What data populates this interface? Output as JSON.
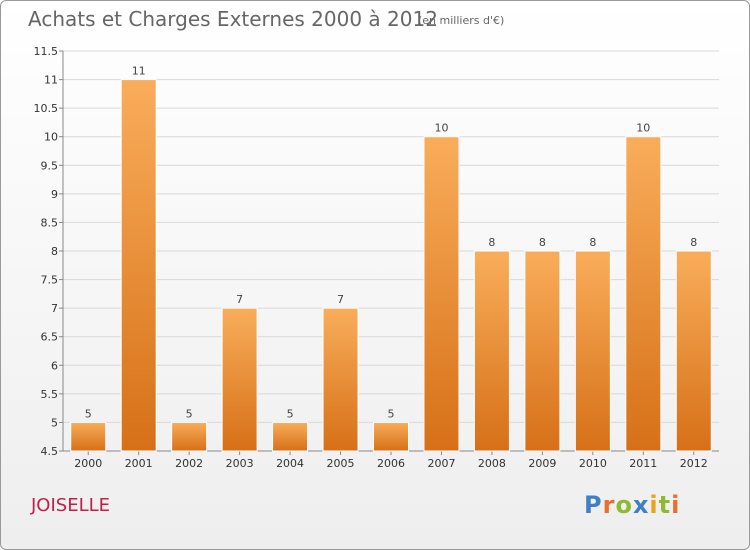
{
  "header": {
    "title": "Achats et Charges Externes 2000 à 2012",
    "subtitle": "(en milliers d'€)"
  },
  "commune": "JOISELLE",
  "logo": {
    "text": "Proxiti"
  },
  "colors": {
    "bar_light": "#f7a64e",
    "bar_dark": "#d9731e",
    "title": "#666666",
    "commune": "#c21d4c"
  },
  "chart_data": {
    "type": "bar",
    "title": "Achats et Charges Externes 2000 à 2012",
    "subtitle": "(en milliers d'€)",
    "categories": [
      "2000",
      "2001",
      "2002",
      "2003",
      "2004",
      "2005",
      "2006",
      "2007",
      "2008",
      "2009",
      "2010",
      "2011",
      "2012"
    ],
    "values": [
      5,
      11,
      5,
      7,
      5,
      7,
      5,
      10,
      8,
      8,
      8,
      10,
      8
    ],
    "ylim": [
      4.5,
      11.5
    ],
    "yticks": [
      4.5,
      5,
      5.5,
      6,
      6.5,
      7,
      7.5,
      8,
      8.5,
      9,
      9.5,
      10,
      10.5,
      11,
      11.5
    ],
    "grid": true,
    "xlabel": "",
    "ylabel": ""
  }
}
